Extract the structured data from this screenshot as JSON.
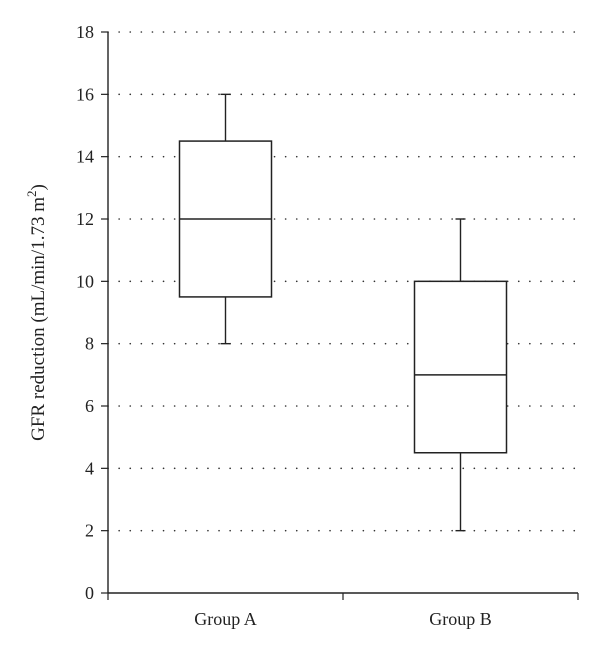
{
  "chart_data": {
    "type": "box",
    "title": "",
    "xlabel": "",
    "ylabel": "GFR reduction (mL/min/1.73 m",
    "ylabel_superscript": "2",
    "ylabel_suffix": ")",
    "ylim": [
      0,
      18
    ],
    "yticks": [
      0,
      2,
      4,
      6,
      8,
      10,
      12,
      14,
      16,
      18
    ],
    "grid": "horizontal-dotted",
    "categories": [
      "Group A",
      "Group B"
    ],
    "boxes": [
      {
        "category": "Group A",
        "min": 8,
        "q1": 9.5,
        "median": 12,
        "q3": 14.5,
        "max": 16
      },
      {
        "category": "Group B",
        "min": 2,
        "q1": 4.5,
        "median": 7,
        "q3": 10,
        "max": 12
      }
    ],
    "colors": {
      "line": "#222222",
      "box_fill": "#ffffff",
      "grid": "#333333"
    }
  }
}
